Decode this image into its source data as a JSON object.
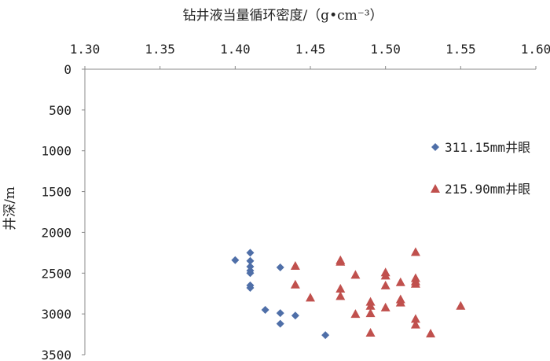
{
  "chart_data": {
    "type": "scatter",
    "xlabel": "钻井液当量循环密度/（g•cm⁻³）",
    "ylabel": "井深/m",
    "xlim": [
      1.3,
      1.6
    ],
    "ylim": [
      0,
      3500
    ],
    "y_inverted": true,
    "x_axis_position": "top",
    "x_ticks": [
      "1.30",
      "1.35",
      "1.40",
      "1.45",
      "1.50",
      "1.55",
      "1.60"
    ],
    "y_ticks": [
      "0",
      "500",
      "1000",
      "1500",
      "2000",
      "2500",
      "3000",
      "3500"
    ],
    "grid": false,
    "legend_position": "right",
    "series": [
      {
        "name": "311.15mm井眼",
        "marker": "diamond",
        "color": "#4f6fa8",
        "points": [
          [
            1.41,
            2250
          ],
          [
            1.4,
            2340
          ],
          [
            1.41,
            2350
          ],
          [
            1.41,
            2420
          ],
          [
            1.41,
            2470
          ],
          [
            1.41,
            2500
          ],
          [
            1.43,
            2430
          ],
          [
            1.41,
            2650
          ],
          [
            1.41,
            2680
          ],
          [
            1.42,
            2950
          ],
          [
            1.43,
            2990
          ],
          [
            1.44,
            3020
          ],
          [
            1.43,
            3120
          ],
          [
            1.46,
            3260
          ]
        ]
      },
      {
        "name": "215.90mm井眼",
        "marker": "triangle",
        "color": "#c0504d",
        "points": [
          [
            1.52,
            2240
          ],
          [
            1.47,
            2340
          ],
          [
            1.47,
            2360
          ],
          [
            1.44,
            2410
          ],
          [
            1.48,
            2520
          ],
          [
            1.5,
            2490
          ],
          [
            1.5,
            2530
          ],
          [
            1.52,
            2560
          ],
          [
            1.52,
            2600
          ],
          [
            1.51,
            2610
          ],
          [
            1.44,
            2640
          ],
          [
            1.5,
            2650
          ],
          [
            1.52,
            2630
          ],
          [
            1.47,
            2690
          ],
          [
            1.45,
            2800
          ],
          [
            1.47,
            2780
          ],
          [
            1.51,
            2820
          ],
          [
            1.51,
            2860
          ],
          [
            1.49,
            2850
          ],
          [
            1.49,
            2900
          ],
          [
            1.5,
            2920
          ],
          [
            1.55,
            2900
          ],
          [
            1.48,
            3000
          ],
          [
            1.49,
            2990
          ],
          [
            1.52,
            3060
          ],
          [
            1.52,
            3130
          ],
          [
            1.49,
            3230
          ],
          [
            1.53,
            3240
          ]
        ]
      }
    ]
  }
}
